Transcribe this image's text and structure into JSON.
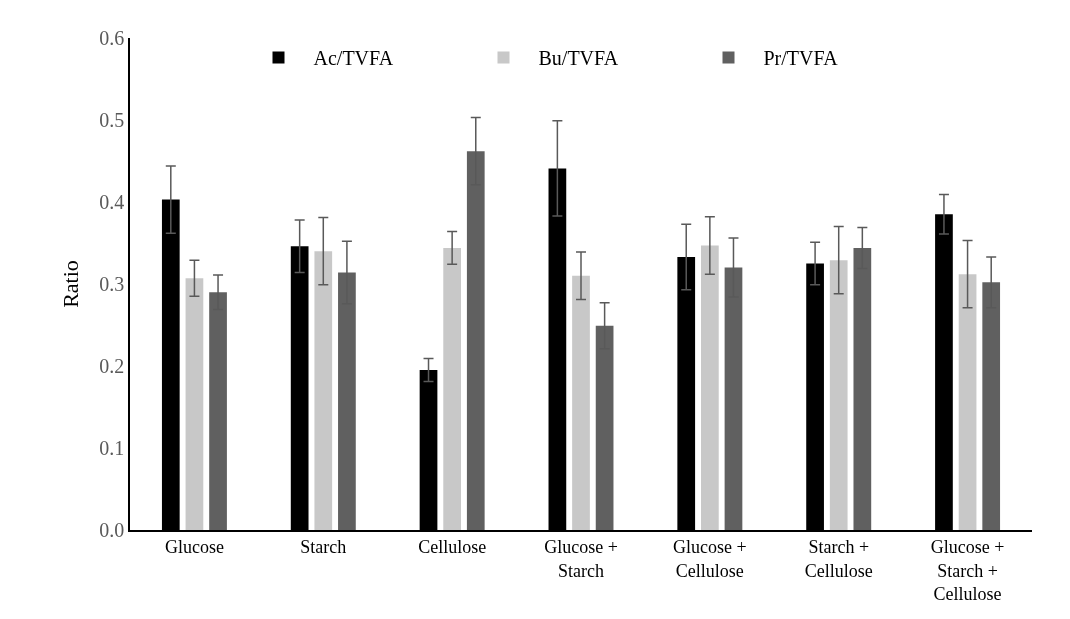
{
  "chart_data": {
    "type": "bar",
    "ylabel": "Ratio",
    "categories": [
      "Glucose",
      "Starch",
      "Cellulose",
      "Glucose + Starch",
      "Glucose + Cellulose",
      "Starch + Cellulose",
      "Glucose + Starch + Cellulose"
    ],
    "series": [
      {
        "name": "Ac/TVFA",
        "color": "#000000",
        "values": [
          0.403,
          0.346,
          0.195,
          0.441,
          0.333,
          0.325,
          0.385
        ],
        "errors": [
          0.041,
          0.032,
          0.014,
          0.058,
          0.04,
          0.026,
          0.024
        ]
      },
      {
        "name": "Bu/TVFA",
        "color": "#c8c8c8",
        "values": [
          0.307,
          0.34,
          0.344,
          0.31,
          0.347,
          0.329,
          0.312
        ],
        "errors": [
          0.022,
          0.041,
          0.02,
          0.029,
          0.035,
          0.041,
          0.041
        ]
      },
      {
        "name": "Pr/TVFA",
        "color": "#606060",
        "values": [
          0.29,
          0.314,
          0.462,
          0.249,
          0.32,
          0.344,
          0.302
        ],
        "errors": [
          0.021,
          0.038,
          0.041,
          0.028,
          0.036,
          0.025,
          0.031
        ]
      }
    ],
    "ylim": [
      0,
      0.6
    ],
    "yticks": [
      {
        "value": 0,
        "label": "0.0"
      },
      0.1,
      0.2,
      0.3,
      0.4,
      0.5,
      0.6
    ],
    "grid": false,
    "legend": "top"
  }
}
